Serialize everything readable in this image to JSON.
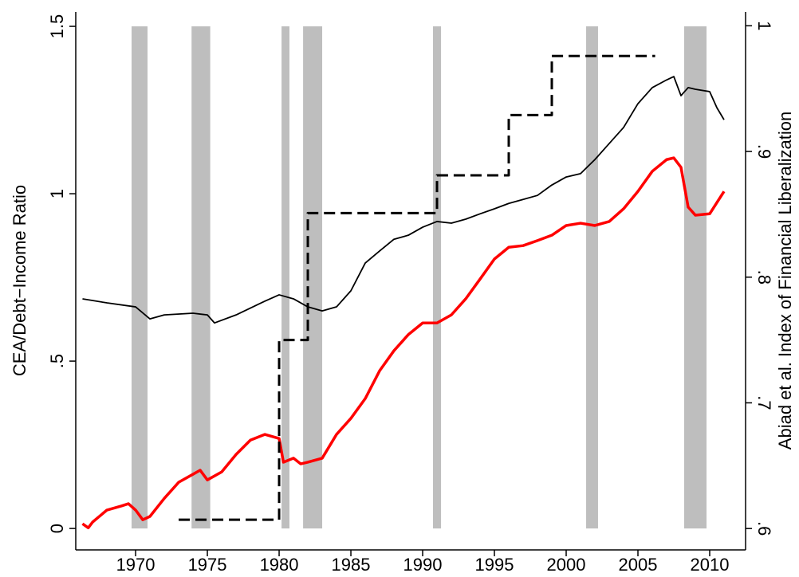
{
  "chart_data": {
    "type": "line",
    "y_label": "CEA/Debt−Income Ratio",
    "y2_label": "Abiad et al. Index of Financial Liberalization",
    "xlim": [
      1965.83,
      2012.5
    ],
    "xticks": [
      1970,
      1975,
      1980,
      1985,
      1990,
      1995,
      2000,
      2005,
      2010
    ],
    "ylim": [
      -0.064,
      1.543
    ],
    "yticks": [
      0,
      {
        "value": 0.5,
        "label": ".5"
      },
      1,
      1.5
    ],
    "y2lim": [
      0.583,
      1.011
    ],
    "y2ticks": [
      {
        "value": 0.6,
        "label": ".6"
      },
      {
        "value": 0.7,
        "label": ".7"
      },
      {
        "value": 0.8,
        "label": ".8"
      },
      {
        "value": 0.9,
        "label": ".9"
      },
      1
    ],
    "shaded_periods": {
      "color": "#bebebe",
      "ranges": [
        [
          1969.72,
          1970.83
        ],
        [
          1973.9,
          1975.2
        ],
        [
          1980.17,
          1980.72
        ],
        [
          1981.67,
          1983.0
        ],
        [
          1990.72,
          1991.28
        ],
        [
          2001.39,
          2002.22
        ],
        [
          2008.22,
          2009.78
        ]
      ]
    },
    "series": [
      {
        "color": "#000000",
        "style": "solid",
        "width": 1.8,
        "x": [
          1966.3,
          1968,
          1970,
          1971,
          1972,
          1974,
          1975,
          1975.5,
          1977,
          1979,
          1980,
          1981,
          1982,
          1983,
          1984,
          1985,
          1986,
          1987,
          1988,
          1989,
          1990,
          1991,
          1992,
          1993,
          1994,
          1995,
          1996,
          1997,
          1998,
          1999,
          2000,
          2001,
          2002,
          2003,
          2004,
          2005,
          2006,
          2007,
          2007.5,
          2008,
          2008.5,
          2009,
          2010,
          2010.5,
          2011
        ],
        "values": [
          0.686,
          0.674,
          0.662,
          0.626,
          0.638,
          0.643,
          0.638,
          0.614,
          0.638,
          0.679,
          0.698,
          0.686,
          0.662,
          0.65,
          0.662,
          0.71,
          0.793,
          0.829,
          0.864,
          0.876,
          0.9,
          0.917,
          0.912,
          0.924,
          0.94,
          0.955,
          0.971,
          0.983,
          0.995,
          1.026,
          1.05,
          1.06,
          1.102,
          1.15,
          1.198,
          1.269,
          1.317,
          1.34,
          1.35,
          1.293,
          1.317,
          1.312,
          1.305,
          1.257,
          1.221
        ]
      },
      {
        "color": "#ff0000",
        "style": "solid",
        "width": 3.5,
        "x": [
          1966.3,
          1966.7,
          1967,
          1968,
          1969,
          1969.5,
          1970,
          1970.5,
          1971,
          1972,
          1973,
          1974,
          1974.5,
          1975,
          1976,
          1977,
          1978,
          1979,
          1980,
          1980.3,
          1981,
          1981.5,
          1982,
          1983,
          1984,
          1985,
          1986,
          1987,
          1988,
          1989,
          1990,
          1991,
          1992,
          1993,
          1994,
          1995,
          1996,
          1997,
          1998,
          1999,
          2000,
          2001,
          2002,
          2003,
          2004,
          2005,
          2006,
          2007,
          2007.5,
          2008,
          2008.5,
          2009,
          2010,
          2011
        ],
        "values": [
          0.014,
          0.002,
          0.019,
          0.055,
          0.067,
          0.074,
          0.055,
          0.026,
          0.036,
          0.09,
          0.138,
          0.162,
          0.174,
          0.145,
          0.169,
          0.221,
          0.264,
          0.281,
          0.269,
          0.198,
          0.21,
          0.193,
          0.198,
          0.21,
          0.281,
          0.329,
          0.388,
          0.471,
          0.531,
          0.579,
          0.614,
          0.614,
          0.638,
          0.686,
          0.745,
          0.805,
          0.84,
          0.845,
          0.86,
          0.876,
          0.905,
          0.912,
          0.905,
          0.917,
          0.955,
          1.007,
          1.067,
          1.102,
          1.107,
          1.079,
          0.96,
          0.936,
          0.94,
          1.007
        ]
      },
      {
        "color": "#000000",
        "style": "dashed",
        "width": 3,
        "axis": "y2",
        "step": true,
        "x": [
          1973,
          1974,
          1975,
          1976,
          1977,
          1978,
          1979,
          1980,
          1981,
          1982,
          1983,
          1984,
          1985,
          1986,
          1987,
          1988,
          1989,
          1990,
          1991,
          1992,
          1993,
          1994,
          1995,
          1996,
          1997,
          1998,
          1999,
          2000,
          2001,
          2002,
          2003,
          2004,
          2005,
          2006.2
        ],
        "values": [
          0.607,
          0.607,
          0.607,
          0.607,
          0.607,
          0.607,
          0.607,
          0.75,
          0.75,
          0.851,
          0.851,
          0.851,
          0.851,
          0.851,
          0.851,
          0.851,
          0.851,
          0.851,
          0.881,
          0.881,
          0.881,
          0.881,
          0.881,
          0.929,
          0.929,
          0.929,
          0.976,
          0.976,
          0.976,
          0.976,
          0.976,
          0.976,
          0.976,
          0.976
        ]
      }
    ]
  }
}
